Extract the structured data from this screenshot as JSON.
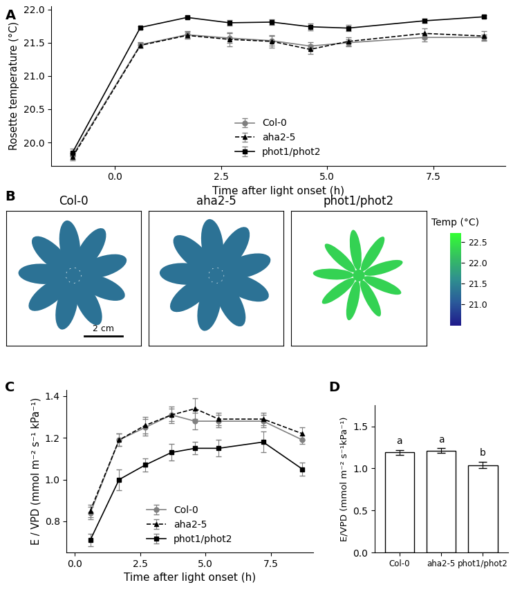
{
  "chart_data": [
    {
      "panel": "A",
      "type": "line",
      "x_label": "Time after light onset (h)",
      "y_label": "Rosette temperature (°C)",
      "x": [
        -1.0,
        0.6,
        1.7,
        2.7,
        3.7,
        4.6,
        5.5,
        7.3,
        8.7
      ],
      "series": [
        {
          "name": "Col-0",
          "color": "#808080",
          "marker": "circle",
          "line_style": "solid",
          "values": [
            19.8,
            21.47,
            21.62,
            21.57,
            21.53,
            21.45,
            21.5,
            21.58,
            21.58
          ],
          "errors": [
            0.05,
            0.04,
            0.05,
            0.07,
            0.07,
            0.06,
            0.05,
            0.06,
            0.04
          ]
        },
        {
          "name": "aha2-5",
          "color": "#000000",
          "marker": "triangle",
          "line_style": "dashed",
          "values": [
            19.78,
            21.46,
            21.61,
            21.55,
            21.52,
            21.4,
            21.52,
            21.64,
            21.6
          ],
          "errors": [
            0.05,
            0.04,
            0.05,
            0.1,
            0.09,
            0.07,
            0.06,
            0.08,
            0.07
          ]
        },
        {
          "name": "phot1/phot2",
          "color": "#000000",
          "marker": "square",
          "line_style": "solid",
          "values": [
            19.85,
            21.73,
            21.88,
            21.8,
            21.81,
            21.74,
            21.72,
            21.83,
            21.89
          ],
          "errors": [
            0.06,
            0.02,
            0.02,
            0.04,
            0.04,
            0.05,
            0.05,
            0.03,
            0.02
          ]
        }
      ],
      "xlim": [
        -1.5,
        9.2
      ],
      "xticks": [
        {
          "value": 0.0,
          "label": "0.0"
        },
        2.5,
        {
          "value": 5.0,
          "label": "5.0"
        },
        7.5
      ],
      "ylim": [
        19.65,
        22.05
      ],
      "yticks": [
        {
          "value": 20.0,
          "label": "20.0"
        },
        20.5,
        {
          "value": 21.0,
          "label": "21.0"
        },
        21.5,
        {
          "value": 22.0,
          "label": "22.0"
        }
      ],
      "legend": "lower center"
    },
    {
      "panel": "B",
      "type": "thermal_image",
      "categories": [
        "Col-0",
        "aha2-5",
        "phot1/phot2"
      ],
      "values": [
        21.3,
        21.3,
        22.3
      ],
      "scale_bar": "2 cm",
      "colorbar_label": "Temp (°C)",
      "colorbar_range": [
        20.5,
        22.7
      ],
      "colorbar_ticks": [
        {
          "value": 21.0,
          "label": "21.0"
        },
        21.5,
        {
          "value": 22.0,
          "label": "22.0"
        },
        22.5
      ]
    },
    {
      "panel": "C",
      "type": "line",
      "x_label": "Time after light onset (h)",
      "y_label": "E / VPD (mmol m⁻² s⁻¹ kPa⁻¹)",
      "x": [
        0.6,
        1.7,
        2.7,
        3.7,
        4.6,
        5.5,
        7.2,
        8.7
      ],
      "series": [
        {
          "name": "Col-0",
          "color": "#808080",
          "marker": "circle",
          "line_style": "solid",
          "values": [
            0.84,
            1.19,
            1.25,
            1.31,
            1.28,
            1.28,
            1.28,
            1.19
          ],
          "errors": [
            0.03,
            0.03,
            0.04,
            0.03,
            0.04,
            0.03,
            0.03,
            0.02
          ]
        },
        {
          "name": "aha2-5",
          "color": "#000000",
          "marker": "triangle",
          "line_style": "dashed",
          "values": [
            0.85,
            1.19,
            1.26,
            1.31,
            1.34,
            1.29,
            1.29,
            1.22
          ],
          "errors": [
            0.03,
            0.03,
            0.04,
            0.04,
            0.05,
            0.03,
            0.03,
            0.03
          ]
        },
        {
          "name": "phot1/phot2",
          "color": "#000000",
          "marker": "square",
          "line_style": "solid",
          "values": [
            0.71,
            1.0,
            1.07,
            1.13,
            1.15,
            1.15,
            1.18,
            1.05
          ],
          "errors": [
            0.03,
            0.05,
            0.03,
            0.04,
            0.03,
            0.04,
            0.05,
            0.03
          ]
        }
      ],
      "xlim": [
        -0.3,
        9.1
      ],
      "xticks": [
        {
          "value": 0.0,
          "label": "0.0"
        },
        2.5,
        {
          "value": 5.0,
          "label": "5.0"
        },
        7.5
      ],
      "ylim": [
        0.65,
        1.43
      ],
      "yticks": [
        0.8,
        {
          "value": 1.0,
          "label": "1.0"
        },
        1.2,
        1.4
      ],
      "legend": "lower center"
    },
    {
      "panel": "D",
      "type": "bar",
      "y_label": "E/VPD (mmol m⁻² s⁻¹kPa⁻¹)",
      "categories": [
        "Col-0",
        "aha2-5",
        "phot1/phot2"
      ],
      "values": [
        1.19,
        1.21,
        1.04
      ],
      "errors": [
        0.03,
        0.03,
        0.04
      ],
      "significance": [
        "a",
        "a",
        "b"
      ],
      "color": "#ffffff",
      "ylim": [
        0.0,
        1.75
      ],
      "yticks": [
        {
          "value": 0.0,
          "label": "0.0"
        },
        0.5,
        {
          "value": 1.0,
          "label": "1.0"
        },
        1.5
      ]
    }
  ]
}
